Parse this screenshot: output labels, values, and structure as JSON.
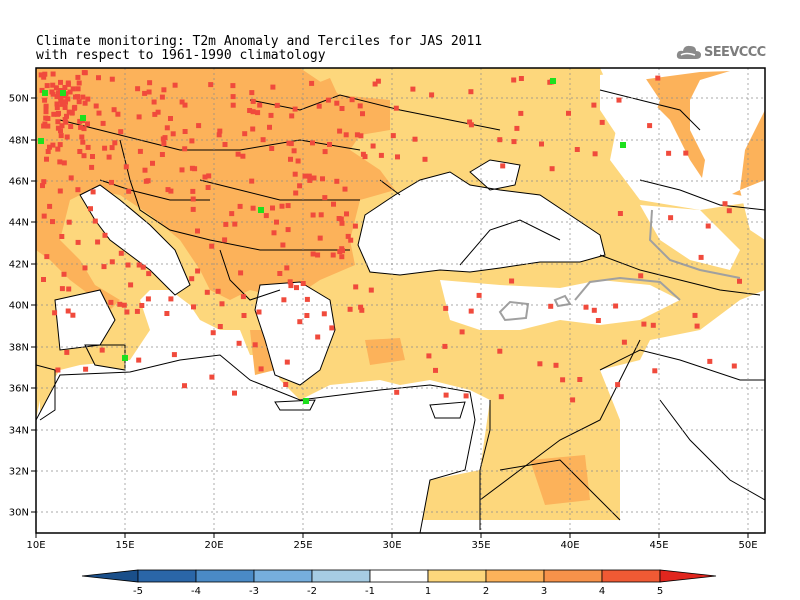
{
  "title": {
    "line1": "Climate monitoring: T2m Anomaly and Terciles for JAS 2011",
    "line2": "with respect to 1961-1990 climatology"
  },
  "logo": {
    "text": "SEEVCCC",
    "icon": "cloud-icon"
  },
  "map": {
    "lon_range": [
      10,
      51
    ],
    "lat_range": [
      29,
      51.5
    ],
    "lat_labels": [
      "50N",
      "48N",
      "46N",
      "44N",
      "42N",
      "40N",
      "38N",
      "36N",
      "34N",
      "32N",
      "30N"
    ],
    "lon_labels": [
      "10E",
      "15E",
      "20E",
      "25E",
      "30E",
      "35E",
      "40E",
      "45E",
      "50E"
    ],
    "colors": {
      "above_tercile_marker": "#f04a3c",
      "below_tercile_marker": "#1ee01e",
      "anomaly_1_2": "#fdd77c",
      "anomaly_2_3": "#fcb25a",
      "land_outline": "#000000",
      "sea": "#ffffff"
    }
  },
  "colorbar": {
    "labels": [
      "-5",
      "-4",
      "-3",
      "-2",
      "-1",
      "1",
      "2",
      "3",
      "4",
      "5"
    ],
    "colors": [
      "#1a4f8a",
      "#2a66a8",
      "#4a8ac6",
      "#76aedd",
      "#a6cce3",
      "#ffffff",
      "#fdd77c",
      "#fcb25a",
      "#f7924a",
      "#f05a34",
      "#e0261e"
    ]
  }
}
